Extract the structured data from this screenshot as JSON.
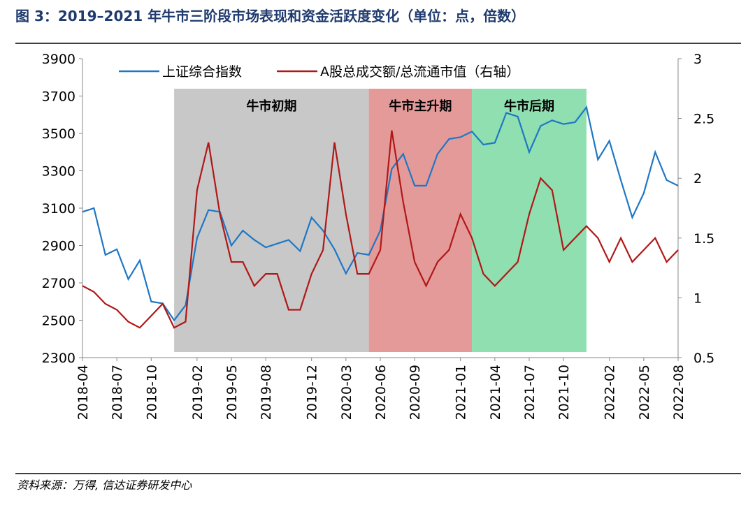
{
  "chart_data": {
    "type": "line",
    "title": "图 3：2019–2021 年牛市三阶段市场表现和资金活跃度变化（单位：点，倍数）",
    "source": "资料来源：万得, 信达证券研发中心",
    "x": [
      "2018-04",
      "2018-05",
      "2018-06",
      "2018-07",
      "2018-08",
      "2018-09",
      "2018-10",
      "2018-11",
      "2018-12",
      "2019-01",
      "2019-02",
      "2019-03",
      "2019-04",
      "2019-05",
      "2019-06",
      "2019-07",
      "2019-08",
      "2019-09",
      "2019-10",
      "2019-11",
      "2019-12",
      "2020-01",
      "2020-02",
      "2020-03",
      "2020-04",
      "2020-05",
      "2020-06",
      "2020-07",
      "2020-08",
      "2020-09",
      "2020-10",
      "2020-11",
      "2020-12",
      "2021-01",
      "2021-02",
      "2021-03",
      "2021-04",
      "2021-05",
      "2021-06",
      "2021-07",
      "2021-08",
      "2021-09",
      "2021-10",
      "2021-11",
      "2021-12",
      "2022-01",
      "2022-02",
      "2022-03",
      "2022-04",
      "2022-05",
      "2022-06",
      "2022-07",
      "2022-08"
    ],
    "xlim": [
      "2018-04",
      "2022-08"
    ],
    "xticks": [
      "2018-04",
      "2018-07",
      "2018-10",
      "2019-02",
      "2019-05",
      "2019-08",
      "2019-12",
      "2020-03",
      "2020-06",
      "2020-09",
      "2021-01",
      "2021-04",
      "2021-07",
      "2021-10",
      "2022-02",
      "2022-05",
      "2022-08"
    ],
    "series": [
      {
        "name": "上证综合指数",
        "color": "#1f77c4",
        "values": [
          3080,
          3100,
          2850,
          2880,
          2720,
          2820,
          2600,
          2590,
          2500,
          2580,
          2940,
          3090,
          3080,
          2900,
          2980,
          2930,
          2890,
          2910,
          2930,
          2870,
          3050,
          2980,
          2880,
          2750,
          2860,
          2850,
          2980,
          3310,
          3390,
          3220,
          3220,
          3390,
          3470,
          3480,
          3510,
          3440,
          3450,
          3610,
          3590,
          3400,
          3540,
          3570,
          3550,
          3560,
          3640,
          3360,
          3460,
          3250,
          3050,
          3180,
          3400,
          3250,
          3220
        ]
      },
      {
        "name": "A股总成交额/总流通市值（右轴）",
        "color": "#b01818",
        "axis": "y2",
        "values": [
          1.1,
          1.05,
          0.95,
          0.9,
          0.8,
          0.75,
          0.85,
          0.95,
          0.75,
          0.8,
          1.9,
          2.3,
          1.7,
          1.3,
          1.3,
          1.1,
          1.2,
          1.2,
          0.9,
          0.9,
          1.2,
          1.4,
          2.3,
          1.7,
          1.2,
          1.2,
          1.4,
          2.4,
          1.8,
          1.3,
          1.1,
          1.3,
          1.4,
          1.7,
          1.5,
          1.2,
          1.1,
          1.2,
          1.3,
          1.7,
          2.0,
          1.9,
          1.4,
          1.5,
          1.6,
          1.5,
          1.3,
          1.5,
          1.3,
          1.4,
          1.5,
          1.3,
          1.4
        ]
      }
    ],
    "ylim": [
      2300,
      3900
    ],
    "yticks": [
      2300,
      2500,
      2700,
      2900,
      3100,
      3300,
      3500,
      3700,
      3900
    ],
    "y2lim": [
      0.5,
      3
    ],
    "y2ticks": [
      0.5,
      1,
      1.5,
      2,
      2.5,
      3
    ],
    "regions": [
      {
        "start": "2018-12",
        "end": "2020-05",
        "label": "牛市初期",
        "color": "#c8c8c8"
      },
      {
        "start": "2020-05",
        "end": "2021-02",
        "label": "牛市主升期",
        "color": "#e59a9a"
      },
      {
        "start": "2021-02",
        "end": "2021-12",
        "label": "牛市后期",
        "color": "#8fdfb0"
      }
    ],
    "legend": "top"
  }
}
